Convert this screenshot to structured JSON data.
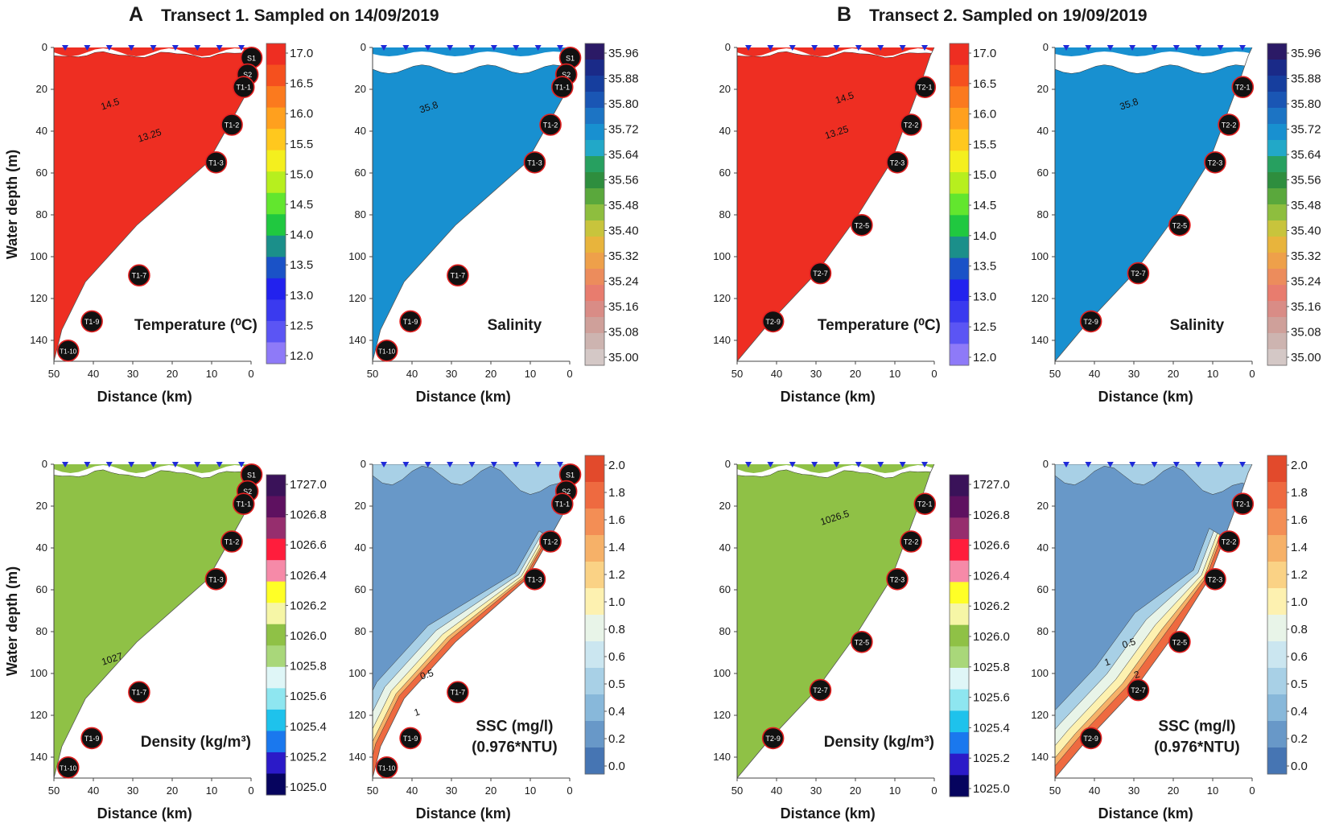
{
  "panels": [
    {
      "letter": "A",
      "title": "Transect 1. Sampled on 14/09/2019"
    },
    {
      "letter": "B",
      "title": "Transect 2. Sampled on 19/09/2019"
    }
  ],
  "chart_data": [
    {
      "type": "heatmap",
      "panel": "A",
      "id": "a-temp",
      "title": "Temperature (⁰C)",
      "xlabel": "Distance (km)",
      "ylabel": "Water depth (m)",
      "xlim": [
        50,
        0
      ],
      "ylim": [
        0,
        150
      ],
      "xticks": [
        50,
        40,
        30,
        20,
        10,
        0
      ],
      "yticks": [
        0,
        20,
        40,
        60,
        80,
        100,
        120,
        140
      ],
      "colorbar": {
        "labels": [
          "17.0",
          "16.5",
          "16.0",
          "15.5",
          "15.0",
          "14.5",
          "14.0",
          "13.5",
          "13.0",
          "12.5",
          "12.0"
        ],
        "colors": [
          "#ee2e22",
          "#f5501e",
          "#fb7a1e",
          "#ffa01e",
          "#ffc81e",
          "#f4ef1e",
          "#b7ef1e",
          "#62e62e",
          "#20c840",
          "#1b8f8a",
          "#1a52c7",
          "#2222ee",
          "#3a3aef",
          "#5b55f4",
          "#8e7af8"
        ]
      },
      "contour_labels": [
        "14.5",
        "13.25"
      ],
      "stations": [
        "S1",
        "S2",
        "T1-1",
        "T1-2",
        "T1-3",
        "T1-7",
        "T1-9",
        "T1-10"
      ],
      "station_km": [
        0.5,
        1.5,
        2.5,
        5.5,
        9.5,
        29,
        41,
        47
      ],
      "station_depth": [
        3,
        11,
        17,
        35,
        53,
        107,
        129,
        143
      ]
    },
    {
      "type": "heatmap",
      "panel": "A",
      "id": "a-sal",
      "title": "Salinity",
      "xlabel": "Distance (km)",
      "ylabel": "",
      "xlim": [
        50,
        0
      ],
      "ylim": [
        0,
        150
      ],
      "xticks": [
        50,
        40,
        30,
        20,
        10,
        0
      ],
      "yticks": [
        0,
        20,
        40,
        60,
        80,
        100,
        120,
        140
      ],
      "colorbar": {
        "labels": [
          "35.96",
          "35.88",
          "35.80",
          "35.72",
          "35.64",
          "35.56",
          "35.48",
          "35.40",
          "35.32",
          "35.24",
          "35.16",
          "35.08",
          "35.00"
        ],
        "colors": [
          "#2b1a66",
          "#1a2a88",
          "#163e9e",
          "#1a56b4",
          "#1c74c4",
          "#1890d0",
          "#22a8c8",
          "#27a060",
          "#2e8e3e",
          "#5aa83c",
          "#8ebe3e",
          "#c8c43c",
          "#e8b43c",
          "#eea04a",
          "#ec8c5c",
          "#e87c6e",
          "#d98c86",
          "#cfa09a",
          "#cdb4b0",
          "#d4c8c6"
        ]
      },
      "contour_labels": [
        "35.8"
      ],
      "stations": [
        "S1",
        "S2",
        "T1-1",
        "T1-2",
        "T1-3",
        "T1-7",
        "T1-9",
        "T1-10"
      ],
      "station_km": [
        0.5,
        1.5,
        2.5,
        5.5,
        9.5,
        29,
        41,
        47
      ],
      "station_depth": [
        3,
        11,
        17,
        35,
        53,
        107,
        129,
        143
      ]
    },
    {
      "type": "heatmap",
      "panel": "B",
      "id": "b-temp",
      "title": "Temperature (⁰C)",
      "xlabel": "Distance (km)",
      "ylabel": "",
      "xlim": [
        50,
        0
      ],
      "ylim": [
        0,
        150
      ],
      "xticks": [
        50,
        40,
        30,
        20,
        10,
        0
      ],
      "yticks": [
        0,
        20,
        40,
        60,
        80,
        100,
        120,
        140
      ],
      "colorbar": {
        "labels": [
          "17.0",
          "16.5",
          "16.0",
          "15.5",
          "15.0",
          "14.5",
          "14.0",
          "13.5",
          "13.0",
          "12.5",
          "12.0"
        ],
        "colors": [
          "#ee2e22",
          "#f5501e",
          "#fb7a1e",
          "#ffa01e",
          "#ffc81e",
          "#f4ef1e",
          "#b7ef1e",
          "#62e62e",
          "#20c840",
          "#1b8f8a",
          "#1a52c7",
          "#2222ee",
          "#3a3aef",
          "#5b55f4",
          "#8e7af8"
        ]
      },
      "contour_labels": [
        "14.5",
        "13.25"
      ],
      "stations": [
        "T2-1",
        "T2-2",
        "T2-3",
        "T2-5",
        "T2-7",
        "T2-9"
      ],
      "station_km": [
        3,
        6.5,
        10,
        19,
        29.5,
        41.5
      ],
      "station_depth": [
        17,
        35,
        53,
        83,
        106,
        129
      ]
    },
    {
      "type": "heatmap",
      "panel": "B",
      "id": "b-sal",
      "title": "Salinity",
      "xlabel": "Distance (km)",
      "ylabel": "",
      "xlim": [
        50,
        0
      ],
      "ylim": [
        0,
        150
      ],
      "xticks": [
        50,
        40,
        30,
        20,
        10,
        0
      ],
      "yticks": [
        0,
        20,
        40,
        60,
        80,
        100,
        120,
        140
      ],
      "colorbar": {
        "labels": [
          "35.96",
          "35.88",
          "35.80",
          "35.72",
          "35.64",
          "35.56",
          "35.48",
          "35.40",
          "35.32",
          "35.24",
          "35.16",
          "35.08",
          "35.00"
        ],
        "colors": [
          "#2b1a66",
          "#1a2a88",
          "#163e9e",
          "#1a56b4",
          "#1c74c4",
          "#1890d0",
          "#22a8c8",
          "#27a060",
          "#2e8e3e",
          "#5aa83c",
          "#8ebe3e",
          "#c8c43c",
          "#e8b43c",
          "#eea04a",
          "#ec8c5c",
          "#e87c6e",
          "#d98c86",
          "#cfa09a",
          "#cdb4b0",
          "#d4c8c6"
        ]
      },
      "contour_labels": [
        "35.8"
      ],
      "stations": [
        "T2-1",
        "T2-2",
        "T2-3",
        "T2-5",
        "T2-7",
        "T2-9"
      ],
      "station_km": [
        3,
        6.5,
        10,
        19,
        29.5,
        41.5
      ],
      "station_depth": [
        17,
        35,
        53,
        83,
        106,
        129
      ]
    },
    {
      "type": "heatmap",
      "panel": "A",
      "id": "a-dens",
      "title": "Density (kg/m³)",
      "xlabel": "Distance (km)",
      "ylabel": "Water depth (m)",
      "xlim": [
        50,
        0
      ],
      "ylim": [
        0,
        150
      ],
      "xticks": [
        50,
        40,
        30,
        20,
        10,
        0
      ],
      "yticks": [
        0,
        20,
        40,
        60,
        80,
        100,
        120,
        140
      ],
      "colorbar": {
        "labels": [
          "1727.0",
          "1026.8",
          "1026.6",
          "1026.4",
          "1026.2",
          "1026.0",
          "1025.8",
          "1025.6",
          "1025.4",
          "1025.2",
          "1025.0"
        ],
        "colors": [
          "#3a1259",
          "#5e1160",
          "#962e6e",
          "#ff1d3c",
          "#f68aa8",
          "#ffff26",
          "#f6f6a6",
          "#8fc146",
          "#a9d77a",
          "#dff6f7",
          "#8ee6f0",
          "#1ec2ec",
          "#1a78ee",
          "#2b1ac8",
          "#06045e"
        ]
      },
      "contour_labels": [
        "1027"
      ],
      "stations": [
        "S1",
        "S2",
        "T1-1",
        "T1-2",
        "T1-3",
        "T1-7",
        "T1-9",
        "T1-10"
      ],
      "station_km": [
        0.5,
        1.5,
        2.5,
        5.5,
        9.5,
        29,
        41,
        47
      ],
      "station_depth": [
        3,
        11,
        17,
        35,
        53,
        107,
        129,
        143
      ]
    },
    {
      "type": "heatmap",
      "panel": "A",
      "id": "a-ssc",
      "title": "SSC (mg/l)",
      "subtitle": "(0.976*NTU)",
      "xlabel": "Distance (km)",
      "ylabel": "",
      "xlim": [
        50,
        0
      ],
      "ylim": [
        0,
        150
      ],
      "xticks": [
        50,
        40,
        30,
        20,
        10,
        0
      ],
      "yticks": [
        0,
        20,
        40,
        60,
        80,
        100,
        120,
        140
      ],
      "colorbar": {
        "labels": [
          "2.0",
          "1.8",
          "1.6",
          "1.4",
          "1.2",
          "1.0",
          "0.8",
          "0.6",
          "0.5",
          "0.4",
          "0.2",
          "0.0"
        ],
        "colors": [
          "#e24a2c",
          "#ee6a40",
          "#f38e55",
          "#f6b168",
          "#fad285",
          "#fdf1b0",
          "#e8f4e8",
          "#cbe6f0",
          "#a8d0e6",
          "#88b8da",
          "#6898c8",
          "#4675b3"
        ]
      },
      "contour_labels": [
        "0.5",
        "1"
      ],
      "stations": [
        "S1",
        "S2",
        "T1-1",
        "T1-2",
        "T1-3",
        "T1-7",
        "T1-9",
        "T1-10"
      ],
      "station_km": [
        0.5,
        1.5,
        2.5,
        5.5,
        9.5,
        29,
        41,
        47
      ],
      "station_depth": [
        3,
        11,
        17,
        35,
        53,
        107,
        129,
        143
      ]
    },
    {
      "type": "heatmap",
      "panel": "B",
      "id": "b-dens",
      "title": "Density (kg/m³)",
      "xlabel": "Distance (km)",
      "ylabel": "",
      "xlim": [
        50,
        0
      ],
      "ylim": [
        0,
        150
      ],
      "xticks": [
        50,
        40,
        30,
        20,
        10,
        0
      ],
      "yticks": [
        0,
        20,
        40,
        60,
        80,
        100,
        120,
        140
      ],
      "colorbar": {
        "labels": [
          "1727.0",
          "1026.8",
          "1026.6",
          "1026.4",
          "1026.2",
          "1026.0",
          "1025.8",
          "1025.6",
          "1025.4",
          "1025.2",
          "1025.0"
        ],
        "colors": [
          "#3a1259",
          "#5e1160",
          "#962e6e",
          "#ff1d3c",
          "#f68aa8",
          "#ffff26",
          "#f6f6a6",
          "#8fc146",
          "#a9d77a",
          "#dff6f7",
          "#8ee6f0",
          "#1ec2ec",
          "#1a78ee",
          "#2b1ac8",
          "#06045e"
        ]
      },
      "contour_labels": [
        "1026.5"
      ],
      "stations": [
        "T2-1",
        "T2-2",
        "T2-3",
        "T2-5",
        "T2-7",
        "T2-9"
      ],
      "station_km": [
        3,
        6.5,
        10,
        19,
        29.5,
        41.5
      ],
      "station_depth": [
        17,
        35,
        53,
        83,
        106,
        129
      ]
    },
    {
      "type": "heatmap",
      "panel": "B",
      "id": "b-ssc",
      "title": "SSC (mg/l)",
      "subtitle": "(0.976*NTU)",
      "xlabel": "Distance (km)",
      "ylabel": "",
      "xlim": [
        50,
        0
      ],
      "ylim": [
        0,
        150
      ],
      "xticks": [
        50,
        40,
        30,
        20,
        10,
        0
      ],
      "yticks": [
        0,
        20,
        40,
        60,
        80,
        100,
        120,
        140
      ],
      "colorbar": {
        "labels": [
          "2.0",
          "1.8",
          "1.6",
          "1.4",
          "1.2",
          "1.0",
          "0.8",
          "0.6",
          "0.5",
          "0.4",
          "0.2",
          "0.0"
        ],
        "colors": [
          "#e24a2c",
          "#ee6a40",
          "#f38e55",
          "#f6b168",
          "#fad285",
          "#fdf1b0",
          "#e8f4e8",
          "#cbe6f0",
          "#a8d0e6",
          "#88b8da",
          "#6898c8",
          "#4675b3"
        ]
      },
      "contour_labels": [
        "0.5",
        "1",
        "2"
      ],
      "stations": [
        "T2-1",
        "T2-2",
        "T2-3",
        "T2-5",
        "T2-7",
        "T2-9"
      ],
      "station_km": [
        3,
        6.5,
        10,
        19,
        29.5,
        41.5
      ],
      "station_depth": [
        17,
        35,
        53,
        83,
        106,
        129
      ]
    }
  ]
}
